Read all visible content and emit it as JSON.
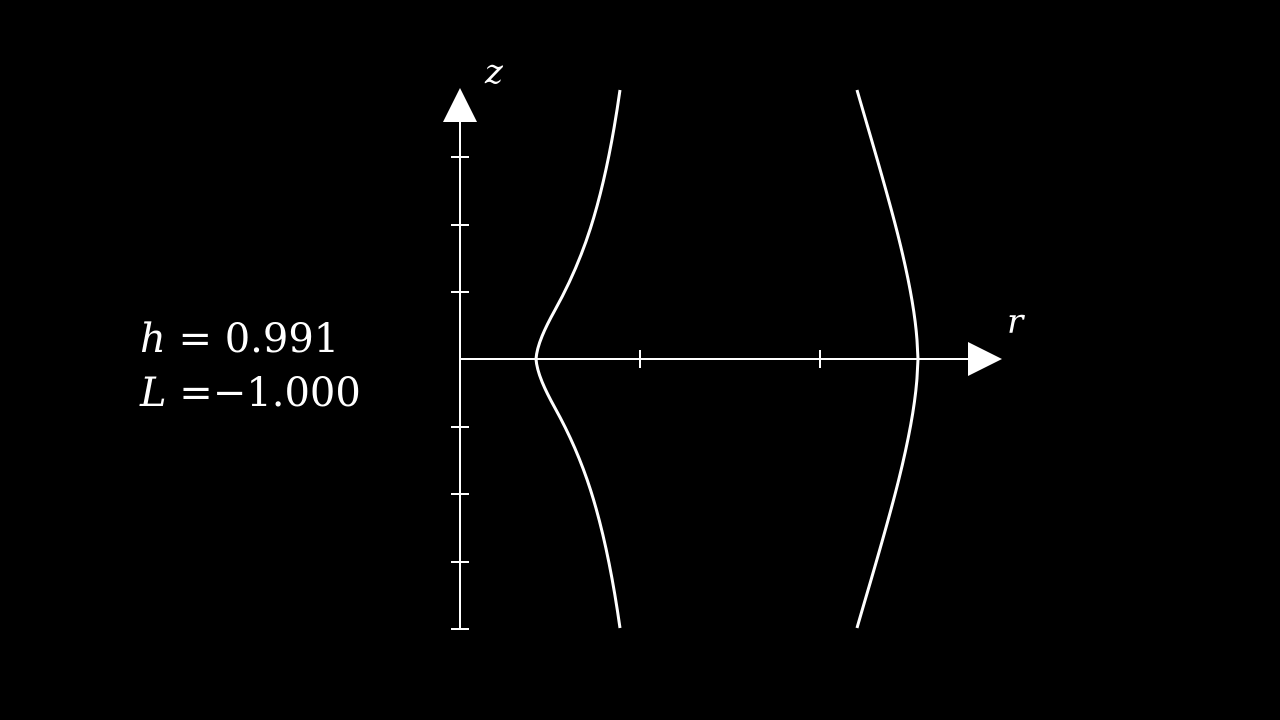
{
  "params": [
    {
      "symbol": "h",
      "equals": " = ",
      "value": "0.991"
    },
    {
      "symbol": "L",
      "equals": " =",
      "value": "−1.000"
    }
  ],
  "axes": {
    "horizontal_label": "r",
    "vertical_label": "z"
  },
  "colors": {
    "background": "#000000",
    "foreground": "#ffffff"
  }
}
